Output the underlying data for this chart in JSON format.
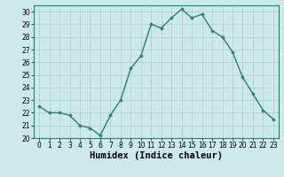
{
  "x": [
    0,
    1,
    2,
    3,
    4,
    5,
    6,
    7,
    8,
    9,
    10,
    11,
    12,
    13,
    14,
    15,
    16,
    17,
    18,
    19,
    20,
    21,
    22,
    23
  ],
  "y": [
    22.5,
    22.0,
    22.0,
    21.8,
    21.0,
    20.8,
    20.2,
    21.8,
    23.0,
    25.5,
    26.5,
    29.0,
    28.7,
    29.5,
    30.2,
    29.5,
    29.8,
    28.5,
    28.0,
    26.8,
    24.8,
    23.5,
    22.2,
    21.5
  ],
  "xlim": [
    -0.5,
    23.5
  ],
  "ylim": [
    20,
    30.5
  ],
  "yticks": [
    20,
    21,
    22,
    23,
    24,
    25,
    26,
    27,
    28,
    29,
    30
  ],
  "xticks": [
    0,
    1,
    2,
    3,
    4,
    5,
    6,
    7,
    8,
    9,
    10,
    11,
    12,
    13,
    14,
    15,
    16,
    17,
    18,
    19,
    20,
    21,
    22,
    23
  ],
  "xlabel": "Humidex (Indice chaleur)",
  "line_color": "#2e7d6e",
  "marker": "D",
  "marker_size": 1.8,
  "line_width": 1.0,
  "background_color": "#cce8e8",
  "grid_color": "#aacece",
  "tick_label_fontsize": 5.5,
  "xlabel_fontsize": 7.5
}
